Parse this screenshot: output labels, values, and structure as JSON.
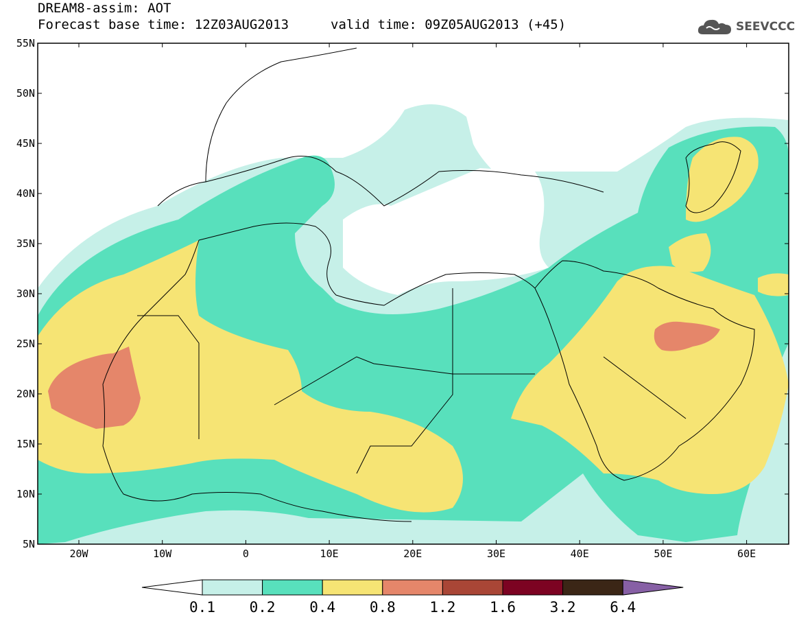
{
  "title": {
    "line1": "DREAM8-assim: AOT",
    "line2": "Forecast base time: 12Z03AUG2013",
    "valid": "valid time: 09Z05AUG2013 (+45)"
  },
  "logo": {
    "text": "SEEVCCC",
    "icon": "cloud-icon"
  },
  "axes": {
    "lat_labels": [
      "55N",
      "50N",
      "45N",
      "40N",
      "35N",
      "30N",
      "25N",
      "20N",
      "15N",
      "10N",
      "5N"
    ],
    "lon_labels": [
      "20W",
      "10W",
      "0",
      "10E",
      "20E",
      "30E",
      "40E",
      "50E",
      "60E"
    ]
  },
  "legend": {
    "labels": [
      "0.1",
      "0.2",
      "0.4",
      "0.8",
      "1.2",
      "1.6",
      "3.2",
      "6.4"
    ],
    "colors": [
      "#ffffff",
      "#c6f0e8",
      "#58e0bc",
      "#f6e474",
      "#e5866a",
      "#a94636",
      "#7c0322",
      "#3b2616",
      "#8760a5"
    ]
  },
  "colors": {
    "c1": "#c6f0e8",
    "c2": "#58e0bc",
    "c3": "#f6e474",
    "c4": "#e5866a"
  }
}
